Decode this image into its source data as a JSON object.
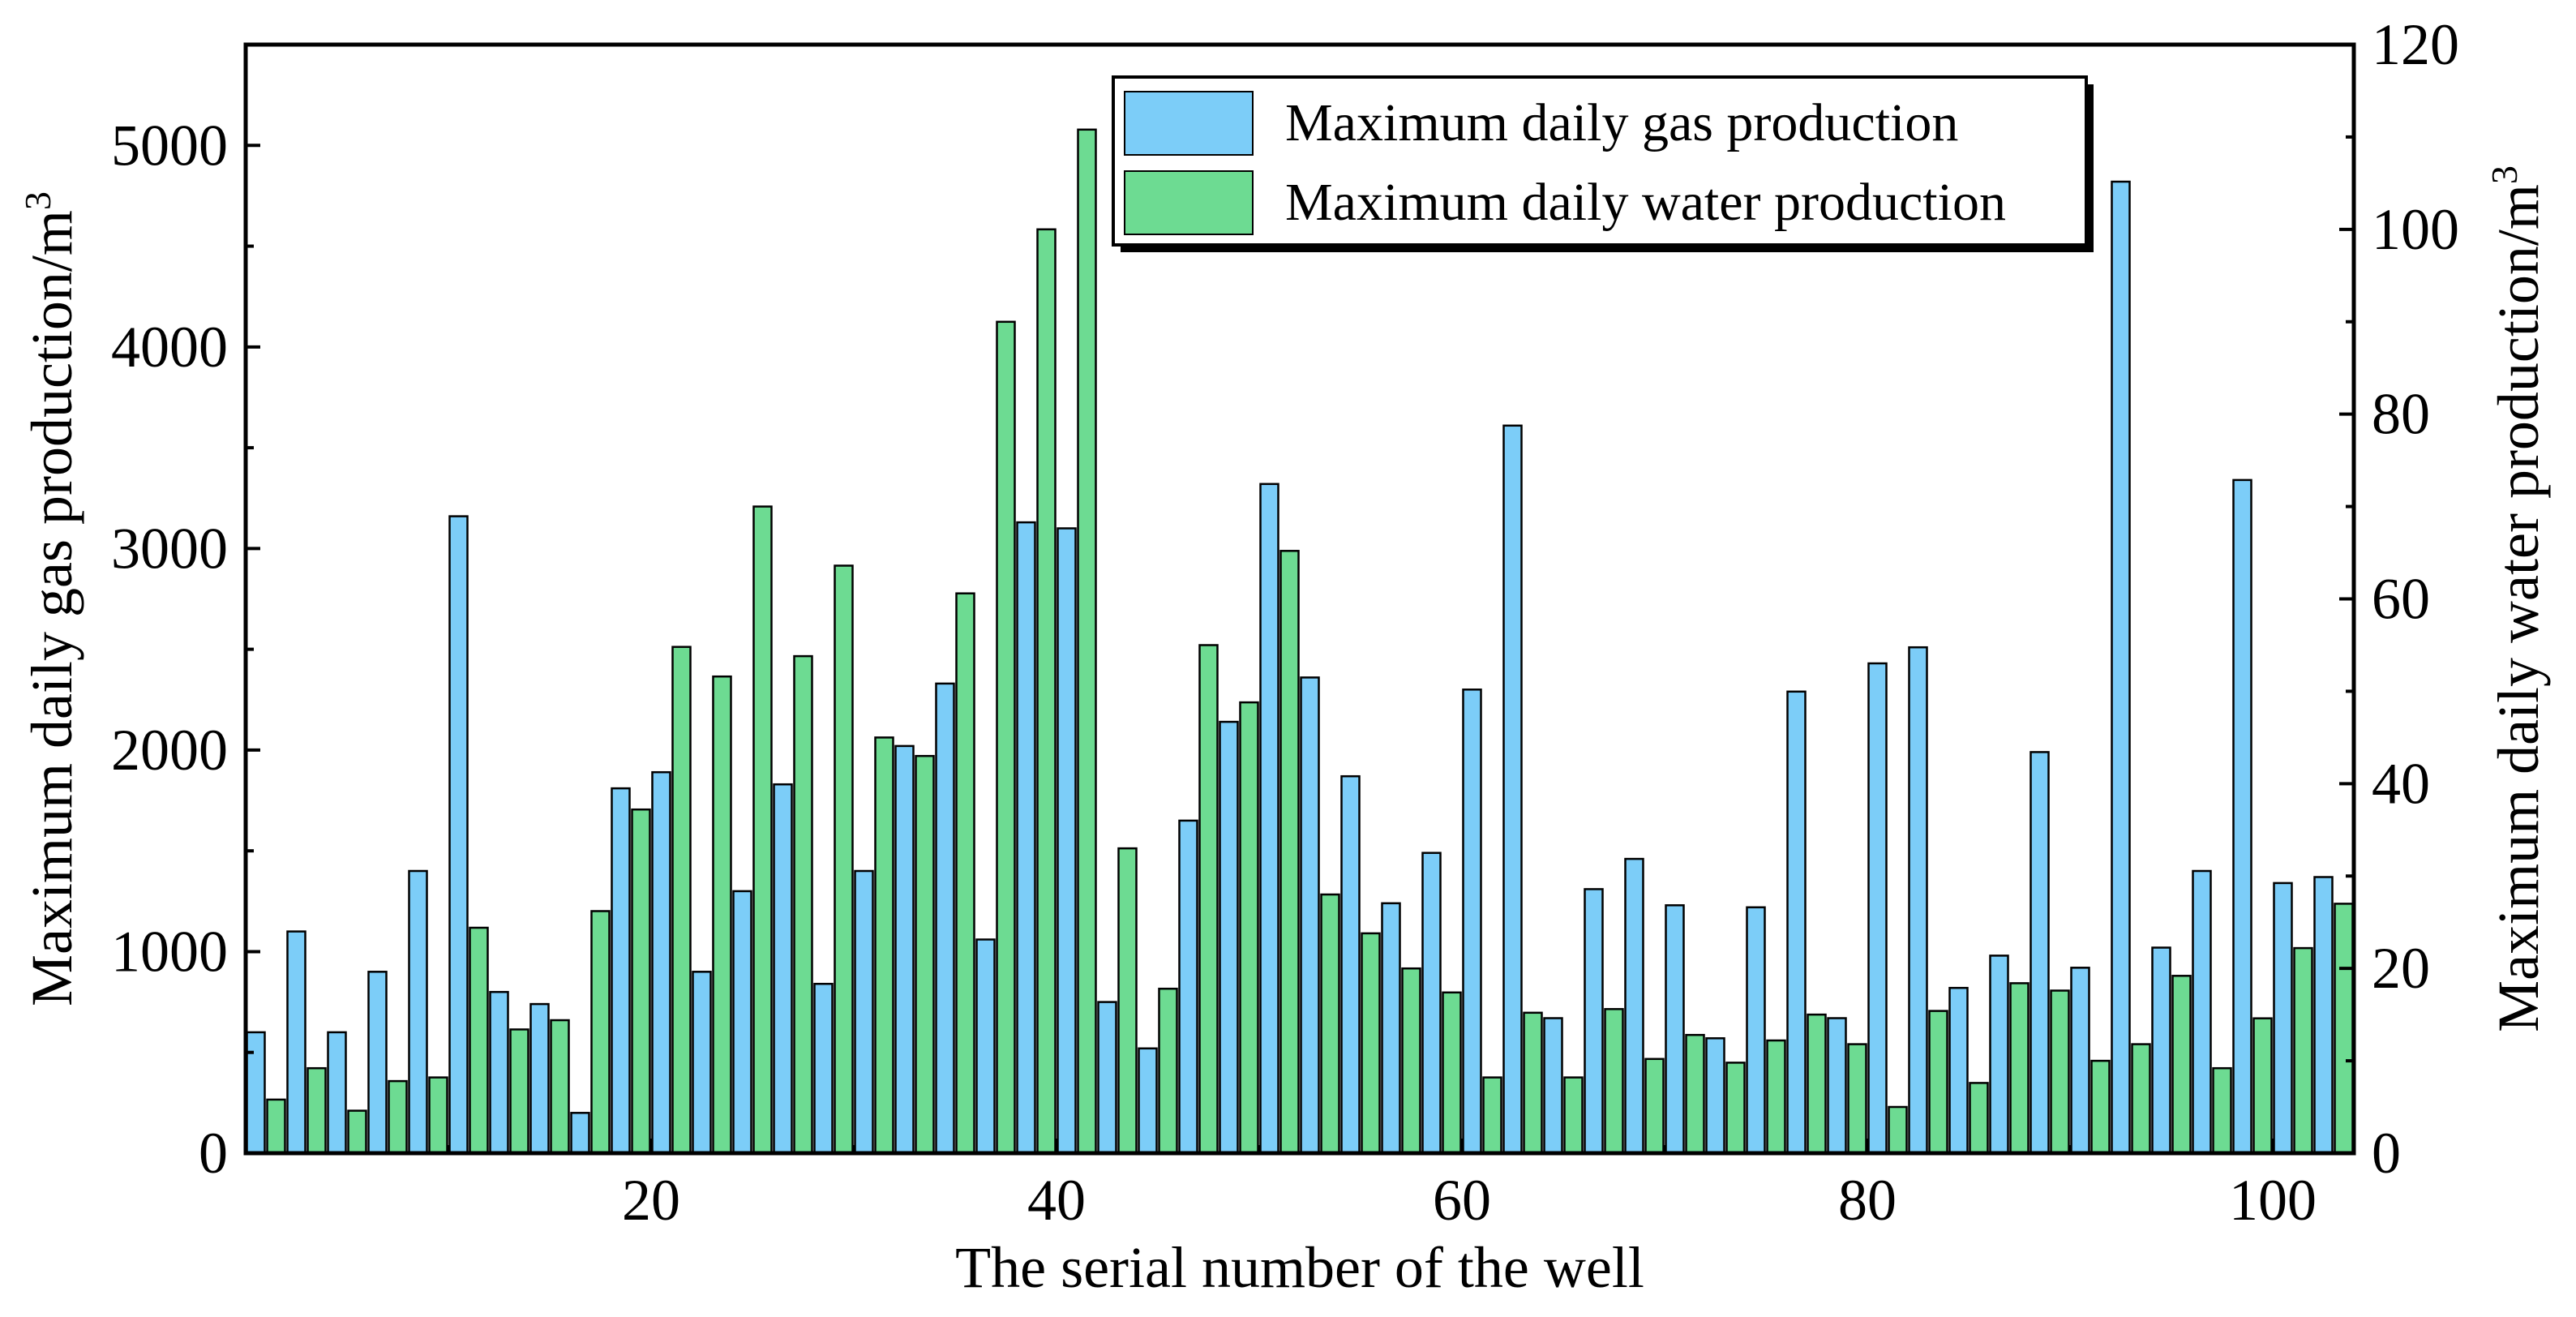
{
  "chart_data": {
    "type": "bar",
    "xlabel": "The serial number of the well",
    "ylabel_left": "Maximum daily gas production/m",
    "ylabel_right": "Maximum daily water production/m",
    "ylabel_superscript": "3",
    "x_range": [
      0,
      104
    ],
    "x_ticks": [
      20,
      40,
      60,
      80,
      100
    ],
    "y_left_range": [
      0,
      5500
    ],
    "y_left_ticks": [
      0,
      1000,
      2000,
      3000,
      4000,
      5000
    ],
    "y_right_range": [
      0,
      120
    ],
    "y_right_ticks": [
      0,
      20,
      40,
      60,
      80,
      100,
      120
    ],
    "legend_position": "top-right",
    "series": [
      {
        "name": "Maximum daily gas production",
        "axis": "left",
        "color": "#7ccdf8",
        "points": [
          [
            1,
            600
          ],
          [
            3,
            1100
          ],
          [
            5,
            600
          ],
          [
            7,
            900
          ],
          [
            9,
            1400
          ],
          [
            11,
            3160
          ],
          [
            13,
            800
          ],
          [
            15,
            740
          ],
          [
            17,
            200
          ],
          [
            19,
            1810
          ],
          [
            21,
            1890
          ],
          [
            23,
            900
          ],
          [
            25,
            1300
          ],
          [
            27,
            1830
          ],
          [
            29,
            840
          ],
          [
            31,
            1400
          ],
          [
            33,
            2020
          ],
          [
            35,
            2330
          ],
          [
            37,
            1060
          ],
          [
            39,
            3130
          ],
          [
            41,
            3100
          ],
          [
            43,
            750
          ],
          [
            45,
            520
          ],
          [
            47,
            1650
          ],
          [
            49,
            2140
          ],
          [
            51,
            3320
          ],
          [
            53,
            2360
          ],
          [
            55,
            1870
          ],
          [
            57,
            1240
          ],
          [
            59,
            1490
          ],
          [
            61,
            2300
          ],
          [
            63,
            3610
          ],
          [
            65,
            670
          ],
          [
            67,
            1310
          ],
          [
            69,
            1460
          ],
          [
            71,
            1230
          ],
          [
            73,
            570
          ],
          [
            75,
            1220
          ],
          [
            77,
            2290
          ],
          [
            79,
            670
          ],
          [
            81,
            2430
          ],
          [
            83,
            2510
          ],
          [
            85,
            820
          ],
          [
            87,
            980
          ],
          [
            89,
            1990
          ],
          [
            91,
            920
          ],
          [
            93,
            4820
          ],
          [
            95,
            1020
          ],
          [
            97,
            1400
          ],
          [
            99,
            3340
          ],
          [
            101,
            1340
          ],
          [
            103,
            1370
          ]
        ]
      },
      {
        "name": "Maximum daily water production",
        "axis": "right",
        "color": "#6ddb92",
        "points": [
          [
            2,
            5.8
          ],
          [
            4,
            9.2
          ],
          [
            6,
            4.6
          ],
          [
            8,
            7.8
          ],
          [
            10,
            8.2
          ],
          [
            12,
            24.4
          ],
          [
            14,
            13.4
          ],
          [
            16,
            14.4
          ],
          [
            18,
            26.2
          ],
          [
            20,
            37.2
          ],
          [
            22,
            54.8
          ],
          [
            24,
            51.6
          ],
          [
            26,
            70
          ],
          [
            28,
            53.8
          ],
          [
            30,
            63.6
          ],
          [
            32,
            45
          ],
          [
            34,
            43
          ],
          [
            36,
            60.6
          ],
          [
            38,
            90
          ],
          [
            40,
            100
          ],
          [
            42,
            110.8
          ],
          [
            44,
            33
          ],
          [
            46,
            17.8
          ],
          [
            48,
            55
          ],
          [
            50,
            48.8
          ],
          [
            52,
            65.2
          ],
          [
            54,
            28
          ],
          [
            56,
            23.8
          ],
          [
            58,
            20
          ],
          [
            60,
            17.4
          ],
          [
            62,
            8.2
          ],
          [
            64,
            15.2
          ],
          [
            66,
            8.2
          ],
          [
            68,
            15.6
          ],
          [
            70,
            10.2
          ],
          [
            72,
            12.8
          ],
          [
            74,
            9.8
          ],
          [
            76,
            12.2
          ],
          [
            78,
            15
          ],
          [
            80,
            11.8
          ],
          [
            82,
            5
          ],
          [
            84,
            15.4
          ],
          [
            86,
            7.6
          ],
          [
            88,
            18.4
          ],
          [
            90,
            17.6
          ],
          [
            92,
            10
          ],
          [
            94,
            11.8
          ],
          [
            96,
            19.2
          ],
          [
            98,
            9.2
          ],
          [
            100,
            14.6
          ],
          [
            102,
            22.2
          ],
          [
            104,
            27
          ]
        ]
      }
    ]
  }
}
